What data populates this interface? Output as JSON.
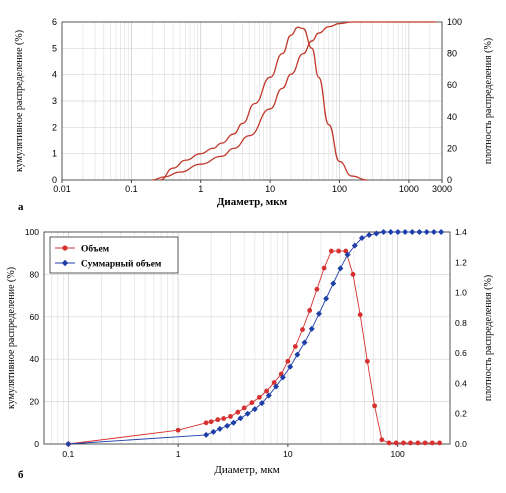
{
  "chart_data": [
    {
      "panel": "а",
      "type": "line",
      "xscale": "log",
      "xlim": [
        0.01,
        3000
      ],
      "ylim_left": [
        0,
        6
      ],
      "ylim_right": [
        0,
        100
      ],
      "grid": true,
      "xlabel": "Диаметр, мкм",
      "ylabel_left": "кумулятивное распределение (%)",
      "ylabel_right": "плотность распределения (%)",
      "x_ticks": [
        "0.01",
        "0.1",
        "1",
        "10",
        "100",
        "1000",
        "3000"
      ],
      "y_ticks_left": [
        "0",
        "1",
        "2",
        "3",
        "4",
        "5",
        "6"
      ],
      "y_ticks_right": [
        "0",
        "20",
        "40",
        "60",
        "80",
        "100"
      ],
      "color": "#c0392b",
      "series": [
        {
          "axis": "left",
          "x": [
            0.26,
            0.4,
            0.6,
            1,
            1.5,
            2,
            3,
            4,
            6,
            10,
            15,
            20,
            25,
            30,
            40,
            50,
            70,
            100,
            150,
            250
          ],
          "y": [
            0,
            0.45,
            0.75,
            1.0,
            1.2,
            1.4,
            1.75,
            2.15,
            2.9,
            3.9,
            4.8,
            5.5,
            5.8,
            5.75,
            5.0,
            3.9,
            2.1,
            0.7,
            0.15,
            0
          ]
        },
        {
          "axis": "right",
          "x": [
            0.2,
            0.3,
            0.5,
            1,
            2,
            3,
            5,
            10,
            15,
            20,
            30,
            40,
            50,
            70,
            100,
            150,
            300,
            1000,
            2500
          ],
          "y": [
            0,
            2,
            5,
            10,
            15,
            20,
            28,
            45,
            58,
            67,
            80,
            88,
            93,
            97,
            99,
            100,
            100,
            100,
            100
          ]
        }
      ]
    },
    {
      "panel": "б",
      "type": "line",
      "xscale": "log",
      "xlim": [
        0.06,
        300
      ],
      "ylim_left": [
        0,
        100
      ],
      "ylim_right": [
        0,
        1.4
      ],
      "grid": true,
      "xlabel": "Диаметр, мкм",
      "ylabel_left": "кумулятивное распределение (%)",
      "ylabel_right": "плотность распределения (%)",
      "x_ticks": [
        "0.1",
        "1",
        "10",
        "100"
      ],
      "y_ticks_left": [
        "0",
        "20",
        "40",
        "60",
        "80",
        "100"
      ],
      "y_ticks_right": [
        "0.0",
        "0.2",
        "0.4",
        "0.6",
        "0.8",
        "1.0",
        "1.2",
        "1.4"
      ],
      "legend_position": "top-left",
      "series": [
        {
          "name": "Объем",
          "axis": "left",
          "color": "#d63030",
          "marker": "circle",
          "x": [
            0.1,
            1,
            1.8,
            2.0,
            2.3,
            2.6,
            3.0,
            3.5,
            4.0,
            4.7,
            5.5,
            6.4,
            7.5,
            8.7,
            10,
            11.7,
            13.6,
            15.8,
            18.4,
            21.4,
            24.9,
            29,
            33.7,
            39.2,
            45.6,
            53,
            61.7,
            71.8,
            83.5,
            97,
            113,
            131,
            153,
            178,
            207,
            241
          ],
          "y": [
            0,
            6.5,
            10,
            10.5,
            11.5,
            12,
            13,
            15,
            17,
            19.5,
            22,
            25,
            29,
            33,
            39,
            46,
            54,
            63,
            73,
            83,
            91,
            91,
            91,
            80,
            61,
            39,
            18,
            2,
            0.5,
            0.5,
            0.5,
            0.5,
            0.5,
            0.5,
            0.5,
            0.5
          ]
        },
        {
          "name": "Суммарный объем",
          "axis": "right",
          "color": "#1f3fa8",
          "marker": "diamond",
          "x": [
            0.1,
            1.8,
            2.1,
            2.4,
            2.8,
            3.2,
            3.7,
            4.3,
            5.0,
            5.8,
            6.7,
            7.8,
            9.0,
            10.5,
            12.2,
            14.2,
            16.5,
            19.2,
            22.3,
            25.9,
            30.1,
            35,
            40.7,
            47.3,
            55,
            64,
            74.4,
            86.5,
            100.6,
            117,
            136,
            158,
            184,
            214,
            249
          ],
          "y": [
            0,
            0.06,
            0.08,
            0.1,
            0.12,
            0.14,
            0.17,
            0.2,
            0.23,
            0.27,
            0.32,
            0.38,
            0.44,
            0.51,
            0.59,
            0.67,
            0.76,
            0.86,
            0.96,
            1.06,
            1.16,
            1.25,
            1.31,
            1.36,
            1.38,
            1.39,
            1.4,
            1.4,
            1.4,
            1.4,
            1.4,
            1.4,
            1.4,
            1.4,
            1.4
          ]
        }
      ]
    }
  ]
}
